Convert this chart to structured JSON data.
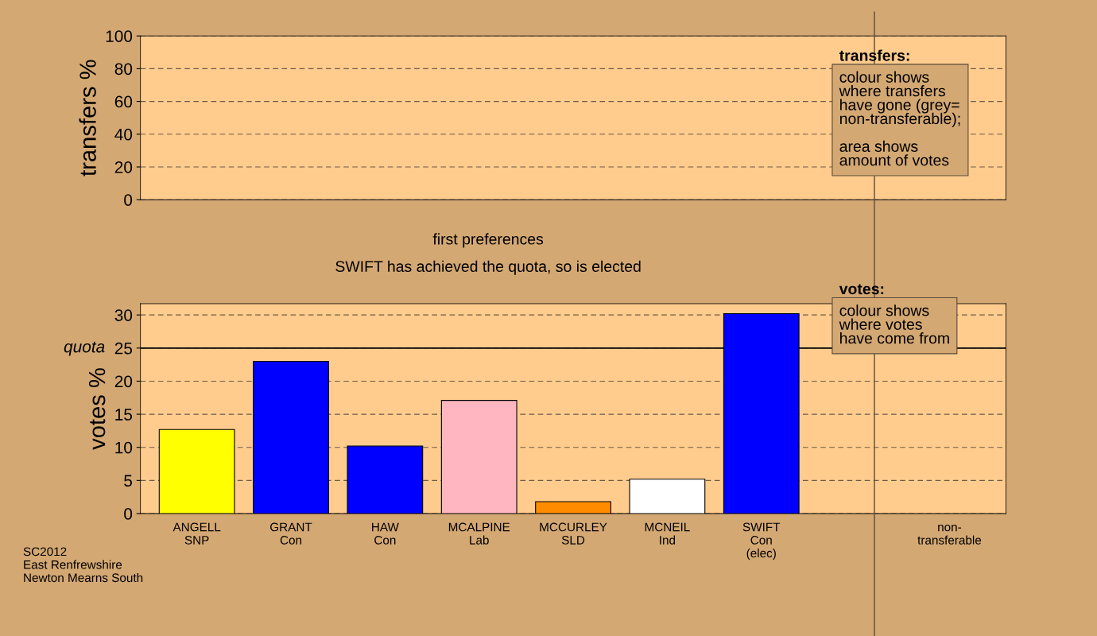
{
  "chart_data": [
    {
      "type": "bar",
      "ylabel": "transfers %",
      "categories": [
        null,
        null,
        null,
        null,
        null,
        null,
        null,
        null,
        null
      ],
      "values": [
        null,
        null,
        null,
        null,
        null,
        null,
        null,
        null,
        null
      ],
      "ylim": [
        0,
        100
      ],
      "yticks": [
        0,
        20,
        40,
        60,
        80,
        100
      ],
      "grid": "y",
      "tick_labels": "y",
      "annotations": [
        "transfers:",
        "colour shows\nwhere transfers\nhave gone (grey=\nnon-transferable);\n\narea shows\namount of votes"
      ]
    },
    {
      "type": "bar",
      "title": "first preferences",
      "subtitle": "SWIFT has achieved the quota, so is elected",
      "ylabel": "votes %",
      "categories": [
        "ANGELL\nSNP",
        "GRANT\nCon",
        "HAW\nCon",
        "MCALPINE\nLab",
        "MCCURLEY\nSLD",
        "MCNEIL\nInd",
        "SWIFT\nCon\n(elec)",
        null,
        "non-\ntransferable"
      ],
      "values": [
        12.7,
        23.0,
        10.2,
        17.1,
        1.8,
        5.2,
        30.2,
        null,
        null
      ],
      "colors": [
        "#ffff00",
        "#0000ff",
        "#0000ff",
        "#ffb6c1",
        "#ff8c00",
        "#ffffff",
        "#0000ff",
        "#000000",
        "#000000"
      ],
      "ylim": [
        0,
        31.7
      ],
      "yticks": [
        0,
        5,
        10,
        15,
        20,
        25,
        30
      ],
      "grid": "y",
      "ref_lines": [
        {
          "axis": "y",
          "value": 25,
          "label": "quota",
          "color": "#000000",
          "line_style": "solid"
        }
      ],
      "annotations": [
        "votes:",
        "colour shows\nwhere votes\nhave come from",
        "SC2012\nEast Renfrewshire\nNewton Mearns South"
      ]
    }
  ]
}
